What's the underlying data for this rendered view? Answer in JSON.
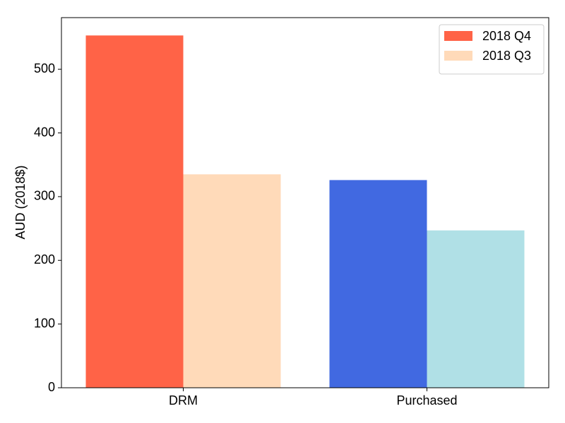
{
  "chart_data": {
    "type": "bar",
    "ylabel": "AUD (2018$)",
    "categories": [
      "DRM",
      "Purchased"
    ],
    "series": [
      {
        "name": "2018 Q4",
        "colors": [
          "#ff6347",
          "#4169e1"
        ],
        "values": [
          553,
          326
        ]
      },
      {
        "name": "2018 Q3",
        "colors": [
          "#ffdab9",
          "#b0e0e6"
        ],
        "values": [
          335,
          247
        ]
      }
    ],
    "ylim": [
      0,
      581
    ],
    "yticks": [
      0,
      100,
      200,
      300,
      400,
      500
    ],
    "legend": "upper right"
  }
}
